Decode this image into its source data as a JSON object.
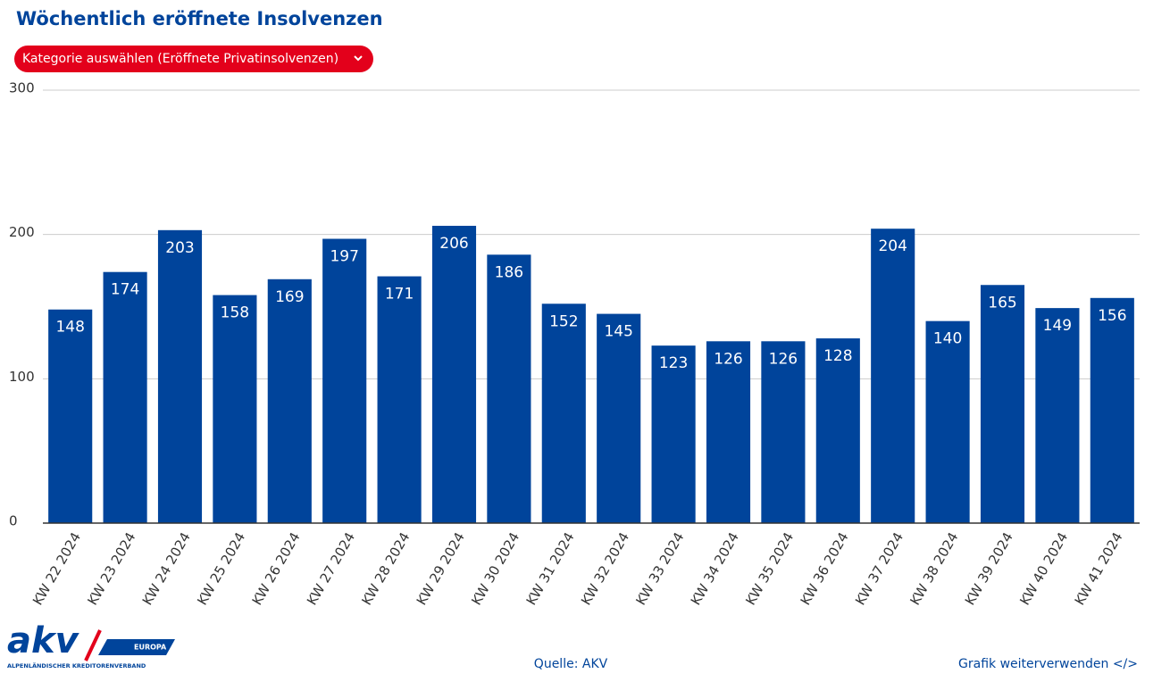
{
  "chart_data": {
    "type": "bar",
    "title": "Wöchentlich eröffnete Insolvenzen",
    "dropdown": "Kategorie auswählen (Eröffnete Privatinsolvenzen)",
    "categories": [
      "KW 22 2024",
      "KW 23 2024",
      "KW 24 2024",
      "KW 25 2024",
      "KW 26 2024",
      "KW 27 2024",
      "KW 28 2024",
      "KW 29 2024",
      "KW 30 2024",
      "KW 31 2024",
      "KW 32 2024",
      "KW 33 2024",
      "KW 34 2024",
      "KW 35 2024",
      "KW 36 2024",
      "KW 37 2024",
      "KW 38 2024",
      "KW 39 2024",
      "KW 40 2024",
      "KW 41 2024"
    ],
    "values": [
      148,
      174,
      203,
      158,
      169,
      197,
      171,
      206,
      186,
      152,
      145,
      123,
      126,
      126,
      128,
      204,
      140,
      165,
      149,
      156
    ],
    "color": "#00449b",
    "ylim": [
      0,
      300
    ],
    "yticks": [
      0,
      100,
      200,
      300
    ],
    "grid": true,
    "source": "Quelle: AKV",
    "share": "Grafik weiterverwenden </>",
    "logo": {
      "name": "akv",
      "region": "EUROPA",
      "tagline": "ALPENLÄNDISCHER KREDITORENVERBAND"
    }
  }
}
